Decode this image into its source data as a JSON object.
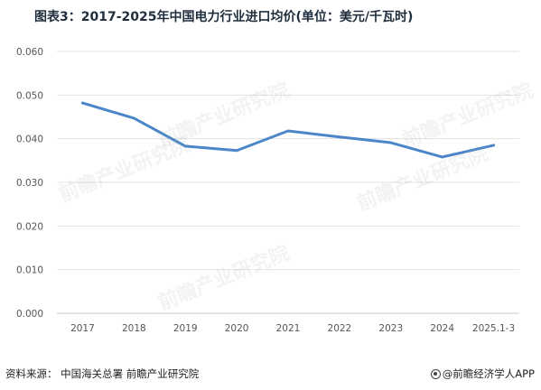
{
  "title": "图表3：2017-2025年中国电力行业进口均价(单位：美元/千瓦时)",
  "footer": {
    "source": "资料来源：  中国海关总署 前瞻产业研究院",
    "brand": "@前瞻经济学人APP"
  },
  "chart_data": {
    "type": "line",
    "title": "图表3：2017-2025年中国电力行业进口均价(单位：美元/千瓦时)",
    "categories": [
      "2017",
      "2018",
      "2019",
      "2020",
      "2021",
      "2022",
      "2023",
      "2024",
      "2025.1-3"
    ],
    "series": [
      {
        "values": [
          0.0482,
          0.0447,
          0.0383,
          0.0373,
          0.0418,
          0.0404,
          0.0391,
          0.0358,
          0.0385
        ]
      }
    ],
    "ylim": [
      0,
      0.06
    ],
    "yticks": [
      0,
      0.01,
      0.02,
      0.03,
      0.04,
      0.05,
      0.06
    ],
    "ytick_labels": [
      "0.000",
      "0.010",
      "0.020",
      "0.030",
      "0.040",
      "0.050",
      "0.060"
    ],
    "grid": true,
    "line_color": "#4a86c8"
  }
}
